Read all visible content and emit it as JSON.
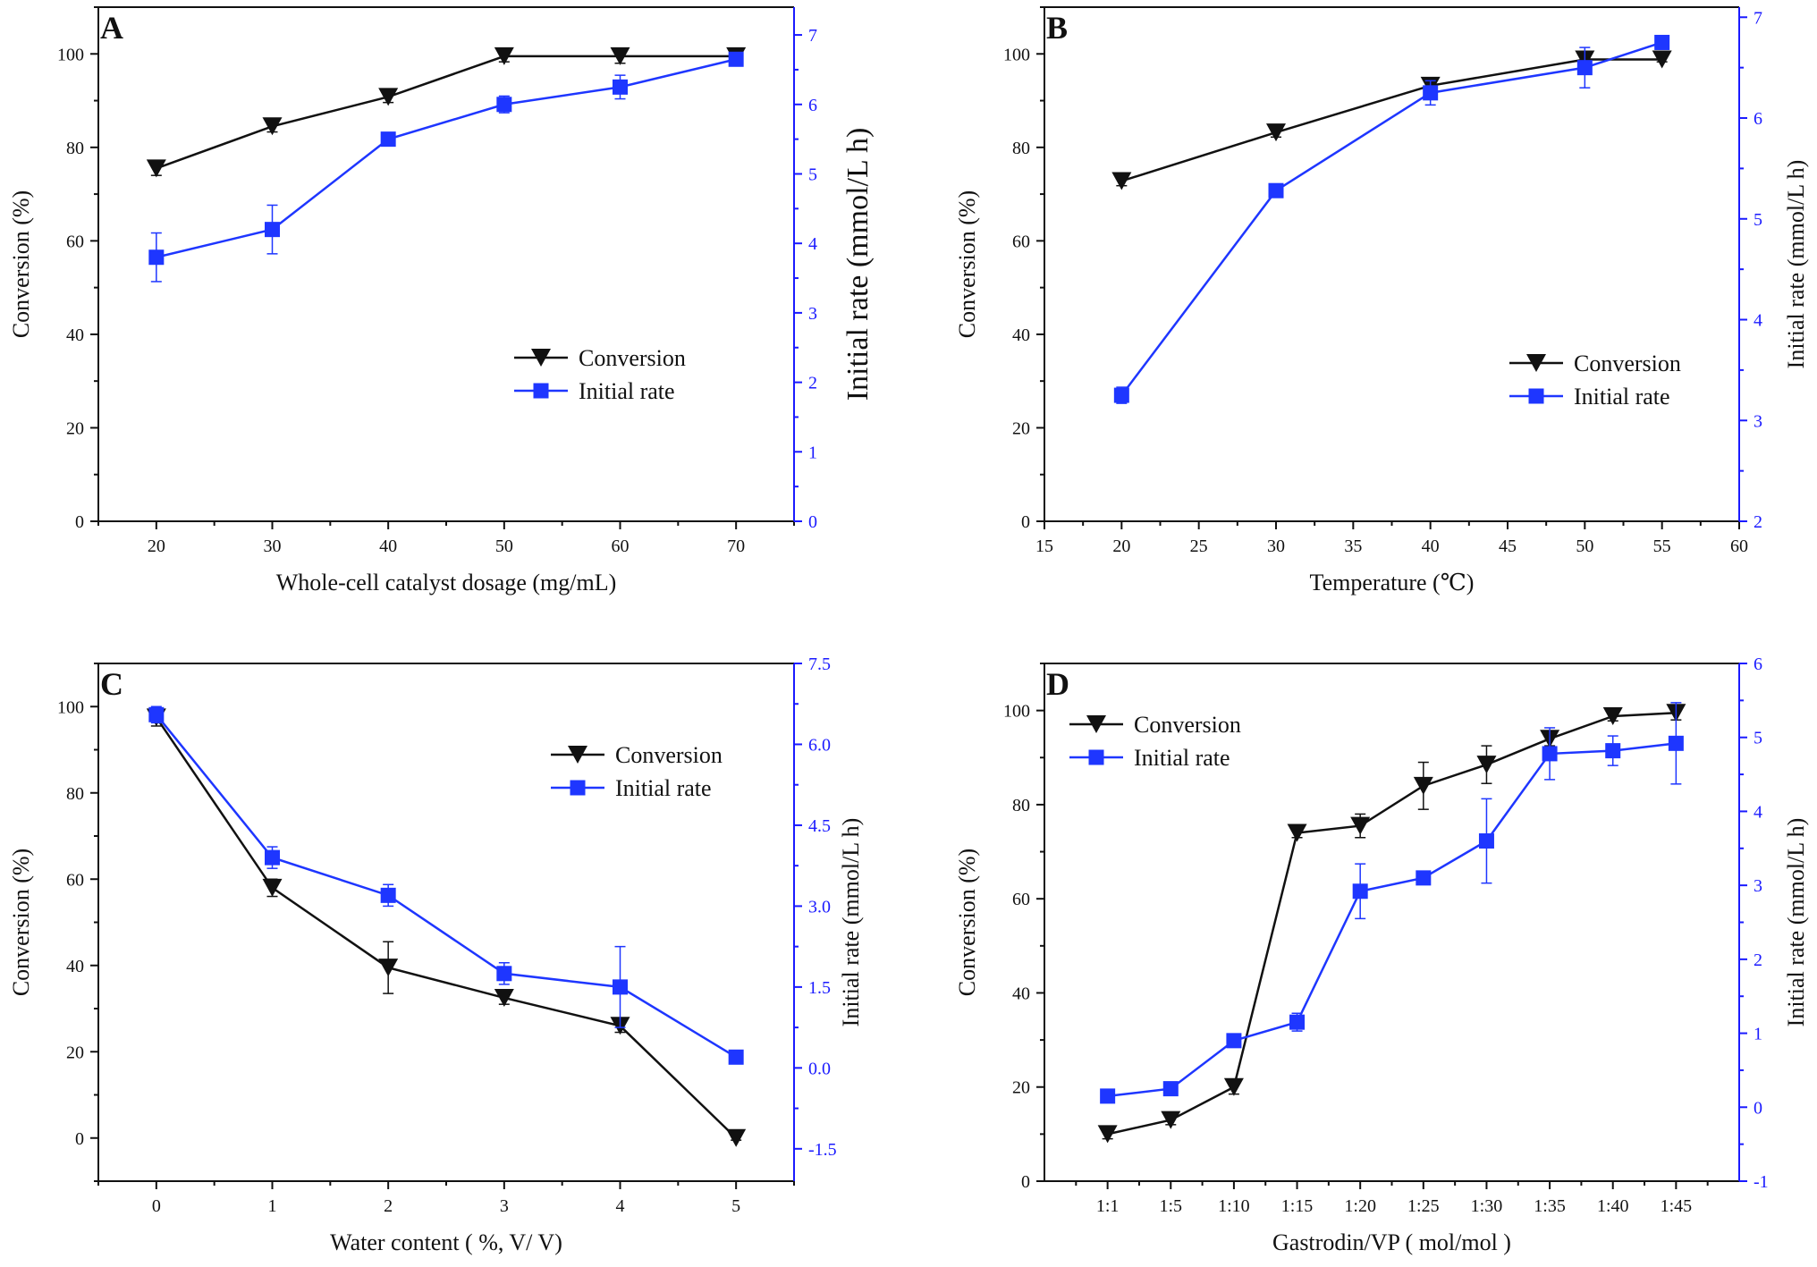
{
  "colors": {
    "conversion": "#111111",
    "initial_rate": "#1e36ff",
    "axis_left": "#111111",
    "axis_right": "#1a1aff"
  },
  "chart_data": [
    {
      "panel": "A",
      "type": "line",
      "xlabel": "Whole-cell catalyst dosage (mg/mL)",
      "ylabel": "Conversion (%)",
      "y2label": "Initial rate (mmol/L h)",
      "xlim": [
        15,
        75
      ],
      "ylim": [
        0,
        110
      ],
      "y2lim": [
        0,
        7.4
      ],
      "x": [
        20,
        30,
        40,
        50,
        60,
        70
      ],
      "xticks": [
        20,
        30,
        40,
        50,
        60,
        70
      ],
      "yticks": [
        0,
        20,
        40,
        60,
        80,
        100
      ],
      "y2ticks": [
        0,
        1,
        2,
        3,
        4,
        5,
        6,
        7
      ],
      "legend": {
        "position": "center-right",
        "entries": [
          "Conversion",
          "Initial rate"
        ]
      },
      "series": [
        {
          "name": "Conversion",
          "axis": "left",
          "marker": "triangle-down",
          "values": [
            75.5,
            84.5,
            90.8,
            99.5,
            99.5,
            99.5
          ],
          "errors": [
            1.5,
            1.2,
            1.2,
            1.2,
            1.5,
            0.8
          ]
        },
        {
          "name": "Initial rate",
          "axis": "right",
          "marker": "square",
          "values": [
            3.8,
            4.2,
            5.5,
            6.0,
            6.25,
            6.65
          ],
          "errors": [
            0.35,
            0.35,
            0.05,
            0.12,
            0.17,
            0.08
          ]
        }
      ]
    },
    {
      "panel": "B",
      "type": "line",
      "xlabel": "Temperature (℃)",
      "ylabel": "Conversion (%)",
      "y2label": "Initial rate (mmol/L h)",
      "xlim": [
        15,
        60
      ],
      "ylim": [
        0,
        110
      ],
      "y2lim": [
        2,
        7.1
      ],
      "x": [
        20,
        30,
        40,
        50,
        55
      ],
      "xticks": [
        15,
        20,
        25,
        30,
        35,
        40,
        45,
        50,
        55,
        60
      ],
      "yticks": [
        0,
        20,
        40,
        60,
        80,
        100
      ],
      "y2ticks": [
        2,
        3,
        4,
        5,
        6,
        7
      ],
      "legend": {
        "position": "center-right",
        "entries": [
          "Conversion",
          "Initial rate"
        ]
      },
      "series": [
        {
          "name": "Conversion",
          "axis": "left",
          "marker": "triangle-down",
          "values": [
            72.8,
            83.2,
            93.2,
            98.8,
            98.8
          ],
          "errors": [
            1.0,
            1.0,
            1.5,
            1.5,
            0.5
          ]
        },
        {
          "name": "Initial rate",
          "axis": "right",
          "marker": "square",
          "values": [
            3.25,
            5.28,
            6.25,
            6.5,
            6.75
          ],
          "errors": [
            0.08,
            0.05,
            0.12,
            0.2,
            0.05
          ]
        }
      ]
    },
    {
      "panel": "C",
      "type": "line",
      "xlabel": "Water content ( %, V/ V)",
      "ylabel": "Conversion (%)",
      "y2label": "Initial rate (mmol/L h)",
      "xlim": [
        -0.5,
        5.5
      ],
      "ylim": [
        -10,
        110
      ],
      "y2lim": [
        -2.1,
        7.5
      ],
      "x": [
        0,
        1,
        2,
        3,
        4,
        5
      ],
      "xticks": [
        0,
        1,
        2,
        3,
        4,
        5
      ],
      "yticks": [
        0,
        20,
        40,
        60,
        80,
        100
      ],
      "y2ticks": [
        -1.5,
        0.0,
        1.5,
        3.0,
        4.5,
        6.0,
        7.5
      ],
      "y2ticklabels": [
        "-1.5",
        "0.0",
        "1.5",
        "3.0",
        "4.5",
        "6.0",
        "7.5"
      ],
      "legend": {
        "position": "top-right",
        "entries": [
          "Conversion",
          "Initial rate"
        ]
      },
      "series": [
        {
          "name": "Conversion",
          "axis": "left",
          "marker": "triangle-down",
          "values": [
            97.5,
            58,
            39.5,
            32.5,
            26,
            0
          ],
          "errors": [
            2.0,
            2.0,
            6.0,
            1.5,
            1.5,
            0.5
          ]
        },
        {
          "name": "Initial rate",
          "axis": "right",
          "marker": "square",
          "values": [
            6.55,
            3.9,
            3.2,
            1.75,
            1.5,
            0.2
          ],
          "errors": [
            0.15,
            0.2,
            0.2,
            0.2,
            0.75,
            0.05
          ]
        }
      ]
    },
    {
      "panel": "D",
      "type": "line",
      "xlabel": "Gastrodin/VP ( mol/mol )",
      "ylabel": "Conversion (%)",
      "y2label": "Initial rate (mmol/L h)",
      "xlim": [
        0,
        11
      ],
      "ylim": [
        0,
        110
      ],
      "y2lim": [
        -1,
        6
      ],
      "categories": [
        "1:1",
        "1:5",
        "1:10",
        "1:15",
        "1:20",
        "1:25",
        "1:30",
        "1:35",
        "1:40",
        "1:45"
      ],
      "yticks": [
        0,
        20,
        40,
        60,
        80,
        100
      ],
      "y2ticks": [
        -1,
        0,
        1,
        2,
        3,
        4,
        5,
        6
      ],
      "legend": {
        "position": "top-left",
        "entries": [
          "Conversion",
          "Initial rate"
        ]
      },
      "series": [
        {
          "name": "Conversion",
          "axis": "left",
          "marker": "triangle-down",
          "values": [
            10,
            13,
            20,
            74,
            75.5,
            84,
            88.5,
            94,
            98.8,
            99.5
          ],
          "errors": [
            1.0,
            1.0,
            1.5,
            1.0,
            2.5,
            5.0,
            4.0,
            1.5,
            1.0,
            1.5
          ]
        },
        {
          "name": "Initial rate",
          "axis": "right",
          "marker": "square",
          "values": [
            0.15,
            0.25,
            0.9,
            1.15,
            2.92,
            3.1,
            3.6,
            4.78,
            4.82,
            4.92
          ],
          "errors": [
            0.05,
            0.05,
            0.05,
            0.12,
            0.37,
            0.05,
            0.57,
            0.35,
            0.2,
            0.55
          ]
        }
      ]
    }
  ]
}
